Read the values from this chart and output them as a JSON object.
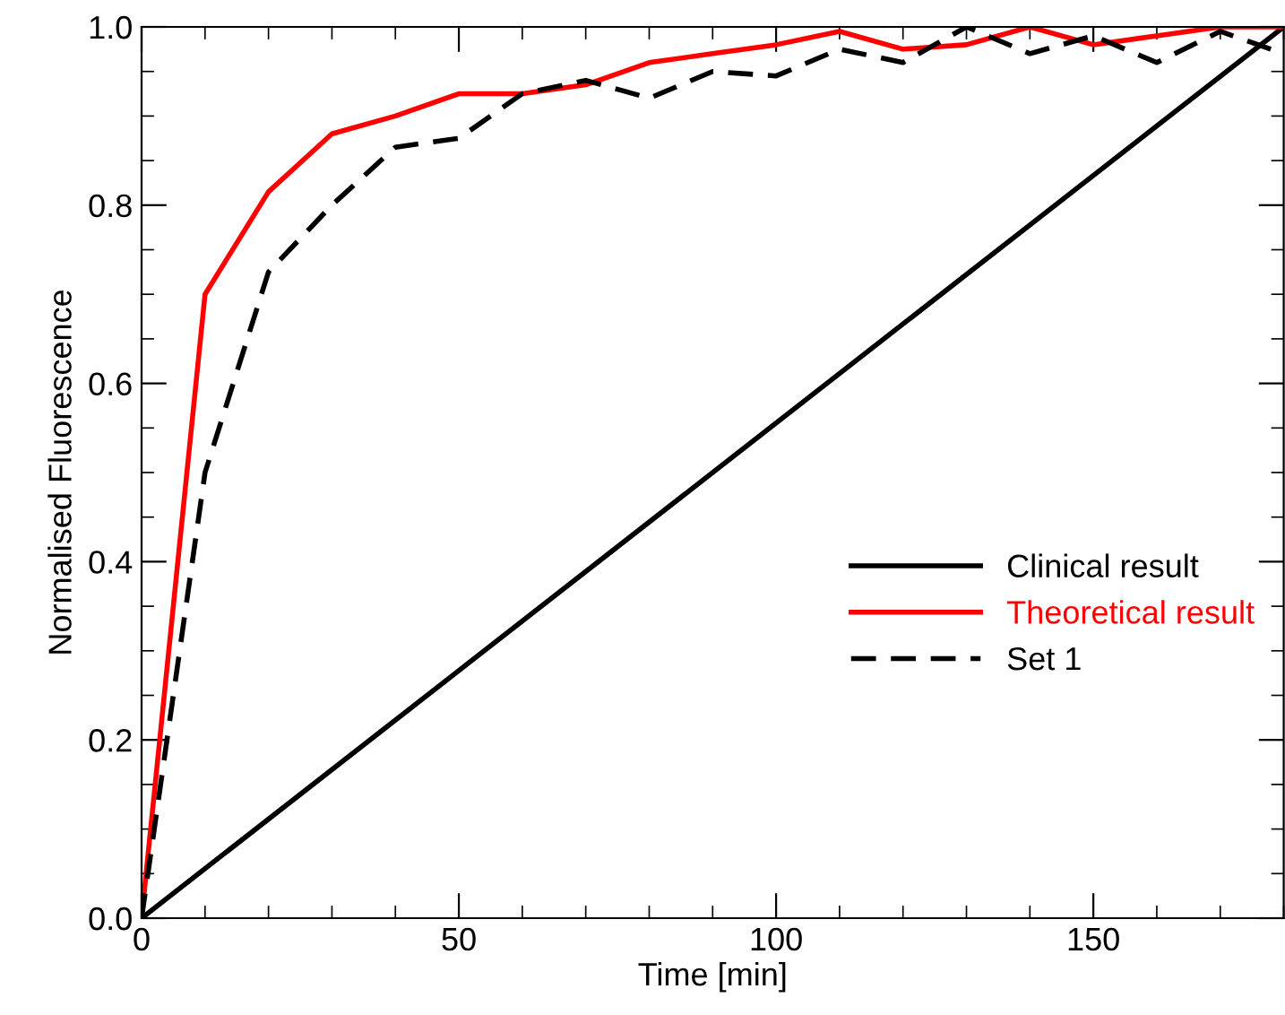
{
  "chart_data": {
    "type": "line",
    "xlabel": "Time [min]",
    "ylabel": "Normalised Fluorescence",
    "xlim": [
      0,
      180
    ],
    "xticks": [
      0,
      50,
      100,
      150
    ],
    "ylim": [
      0,
      1
    ],
    "yticks": [
      {
        "value": 0,
        "label": "0.0"
      },
      {
        "value": 0.2,
        "label": "0.2"
      },
      {
        "value": 0.4,
        "label": "0.4"
      },
      {
        "value": 0.6,
        "label": "0.6"
      },
      {
        "value": 0.8,
        "label": "0.8"
      },
      {
        "value": 1,
        "label": "1.0"
      }
    ],
    "grid": false,
    "legend": "right",
    "marker": "none",
    "series": [
      {
        "name": "Clinical result",
        "color": "#000000",
        "line_style": "solid",
        "x": [
          0,
          180
        ],
        "values": [
          0,
          1.0
        ]
      },
      {
        "name": "Theoretical result",
        "color": "#ff0000",
        "line_style": "solid",
        "x": [
          0,
          10,
          20,
          30,
          40,
          50,
          60,
          70,
          80,
          90,
          100,
          110,
          120,
          130,
          140,
          150,
          160,
          170,
          180
        ],
        "values": [
          0,
          0.7,
          0.815,
          0.88,
          0.9,
          0.925,
          0.925,
          0.935,
          0.96,
          0.97,
          0.98,
          0.995,
          0.975,
          0.98,
          1.0,
          0.98,
          0.99,
          1.0,
          1.0
        ]
      },
      {
        "name": "Set 1",
        "color": "#000000",
        "line_style": "dashed",
        "x": [
          0,
          10,
          20,
          30,
          40,
          50,
          60,
          70,
          80,
          90,
          100,
          110,
          120,
          130,
          140,
          150,
          160,
          170,
          180
        ],
        "values": [
          0,
          0.5,
          0.725,
          0.8,
          0.865,
          0.875,
          0.925,
          0.94,
          0.92,
          0.95,
          0.945,
          0.975,
          0.96,
          1.0,
          0.97,
          0.99,
          0.96,
          0.995,
          0.97
        ]
      }
    ]
  }
}
